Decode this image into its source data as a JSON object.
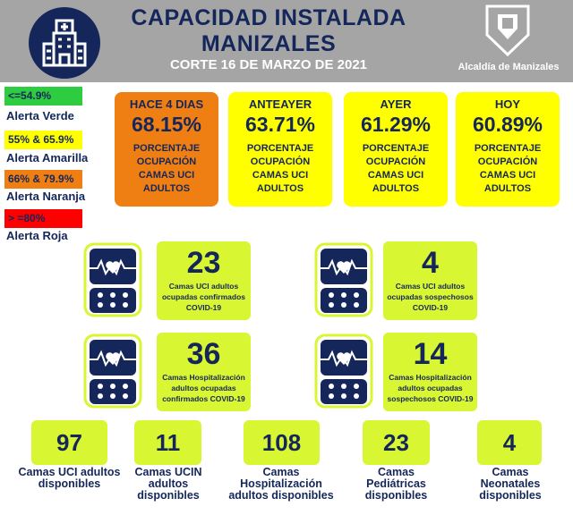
{
  "header": {
    "title_line1": "CAPACIDAD INSTALADA",
    "title_line2": "MANIZALES",
    "subtitle": "CORTE 16  DE MARZO DE 2021",
    "org": "Alcaldía de Manizales"
  },
  "legend": [
    {
      "range": "<=54.9%",
      "label": "Alerta Verde",
      "color": "#2ecc40"
    },
    {
      "range": "55% & 65.9%",
      "label": "Alerta Amarilla",
      "color": "#ffff00"
    },
    {
      "range": "66% & 79.9%",
      "label": "Alerta Naranja",
      "color": "#f07f13"
    },
    {
      "range": "> =80%",
      "label": "Alerta Roja",
      "color": "#ff0000"
    }
  ],
  "cards": [
    {
      "title": "HACE 4 DIAS",
      "value": "68.15%",
      "desc": "PORCENTAJE OCUPACIÓN CAMAS UCI ADULTOS",
      "color": "#f07f13"
    },
    {
      "title": "ANTEAYER",
      "value": "63.71%",
      "desc": "PORCENTAJE OCUPACIÓN CAMAS UCI ADULTOS",
      "color": "#ffff00"
    },
    {
      "title": "AYER",
      "value": "61.29%",
      "desc": "PORCENTAJE OCUPACIÓN CAMAS UCI ADULTOS",
      "color": "#ffff00"
    },
    {
      "title": "HOY",
      "value": "60.89%",
      "desc": "PORCENTAJE OCUPACIÓN CAMAS UCI ADULTOS",
      "color": "#ffff00"
    }
  ],
  "occupied": [
    {
      "value": "23",
      "label": "Camas UCI adultos ocupadas confirmados COVID-19"
    },
    {
      "value": "4",
      "label": "Camas UCI adultos ocupadas sospechosos COVID-19"
    },
    {
      "value": "36",
      "label": "Camas  Hospitalización adultos ocupadas confirmados COVID-19"
    },
    {
      "value": "14",
      "label": "Camas  Hospitalización adultos ocupadas sospechosos COVID-19"
    }
  ],
  "available": [
    {
      "value": "97",
      "label": "Camas UCI adultos disponibles"
    },
    {
      "value": "11",
      "label": "Camas UCIN adultos disponibles"
    },
    {
      "value": "108",
      "label": "Camas Hospitalización adultos disponibles"
    },
    {
      "value": "23",
      "label": "Camas Pediátricas disponibles"
    },
    {
      "value": "4",
      "label": "Camas Neonatales disponibles"
    }
  ]
}
